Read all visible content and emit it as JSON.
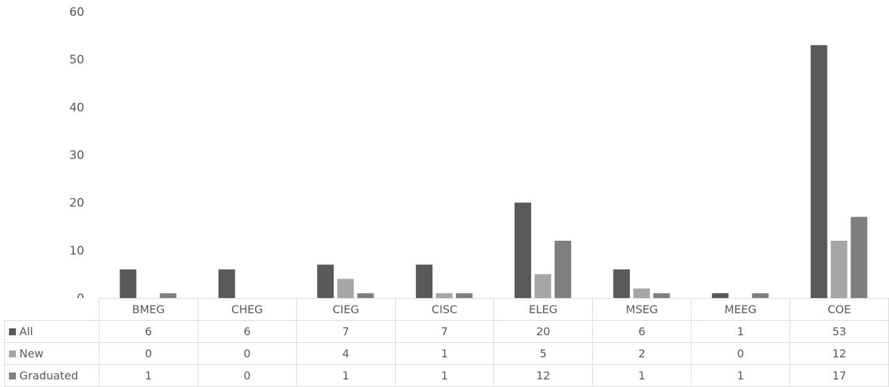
{
  "chart_data": {
    "type": "bar",
    "categories": [
      "BMEG",
      "CHEG",
      "CIEG",
      "CISC",
      "ELEG",
      "MSEG",
      "MEEG",
      "COE"
    ],
    "series": [
      {
        "name": "All",
        "values": [
          6,
          6,
          7,
          7,
          20,
          6,
          1,
          53
        ],
        "color": "#595959"
      },
      {
        "name": "New",
        "values": [
          0,
          0,
          4,
          1,
          5,
          2,
          0,
          12
        ],
        "color": "#a6a6a6"
      },
      {
        "name": "Graduated",
        "values": [
          1,
          0,
          1,
          1,
          12,
          1,
          1,
          17
        ],
        "color": "#7f7f7f"
      }
    ],
    "ylim": [
      0,
      60
    ],
    "yticks": [
      0,
      10,
      20,
      30,
      40,
      50,
      60
    ],
    "grid": false,
    "legend": "data-table-below",
    "data_table": true
  }
}
